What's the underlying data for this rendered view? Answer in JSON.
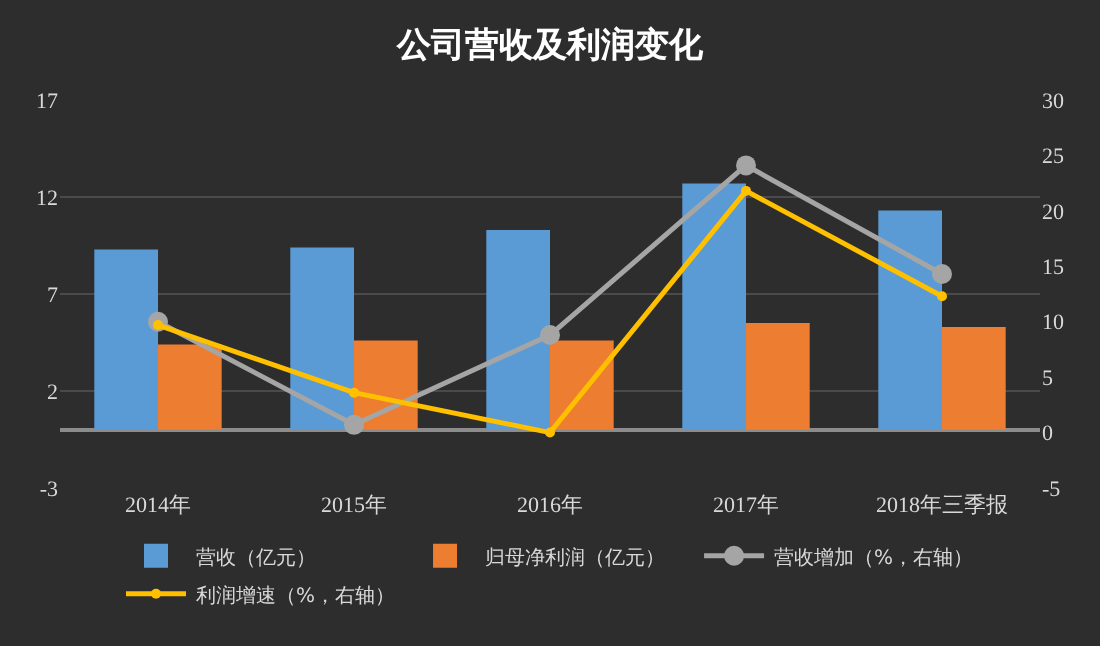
{
  "chart_data": {
    "type": "bar",
    "title": "公司营收及利润变化",
    "categories": [
      "2014年",
      "2015年",
      "2016年",
      "2017年",
      "2018年三季报"
    ],
    "series": [
      {
        "name": "营收（亿元）",
        "color": "#5b9bd5",
        "values": [
          9.3,
          9.4,
          10.3,
          12.7,
          11.3
        ]
      },
      {
        "name": "归母净利润（亿元）",
        "color": "#ed7d31",
        "values": [
          4.4,
          4.6,
          4.6,
          5.5,
          5.3
        ]
      },
      {
        "name": "营收增加（%，右轴）",
        "type": "line",
        "axis": "y2",
        "color": "#a5a5a5",
        "values": [
          10.0,
          0.7,
          8.8,
          24.1,
          14.3
        ]
      },
      {
        "name": "利润增速（%，右轴）",
        "type": "line",
        "axis": "y2",
        "color": "#ffc000",
        "values": [
          9.7,
          3.6,
          0.0,
          21.8,
          12.3
        ]
      }
    ],
    "ylim": [
      -3,
      17
    ],
    "yticks": [
      -3,
      2,
      7,
      12,
      17
    ],
    "y2lim": [
      -5,
      30
    ],
    "y2ticks": [
      -5,
      0,
      5,
      10,
      15,
      20,
      25,
      30
    ],
    "grid": "y",
    "legend": "bottom",
    "marker": "circle",
    "line_style": "solid"
  }
}
